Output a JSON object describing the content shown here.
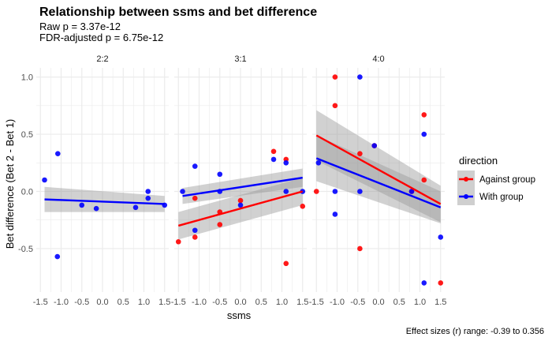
{
  "chart_data": {
    "type": "scatter",
    "title": "Relationship between ssms and bet difference",
    "subtitle_lines": [
      "Raw p = 3.37e-12",
      "FDR-adjusted p = 6.75e-12"
    ],
    "xlabel": "ssms",
    "ylabel": "Bet difference (Bet 2 - Bet 1)",
    "caption": "Effect sizes (r) range: -0.39 to 0.356",
    "xlim": [
      -1.6,
      1.6
    ],
    "ylim": [
      -0.88,
      1.08
    ],
    "x_ticks": [
      -1.5,
      -1.0,
      -0.5,
      0.0,
      0.5,
      1.0,
      1.5
    ],
    "x_tick_labels": [
      "-1.5",
      "-1.0",
      "-0.5",
      "0.0",
      "0.5",
      "1.0",
      "1.5"
    ],
    "y_ticks": [
      -0.5,
      0.0,
      0.5,
      1.0
    ],
    "y_tick_labels": [
      "-0.5",
      "0.0",
      "0.5",
      "1.0"
    ],
    "grid": true,
    "legend": {
      "title": "direction",
      "placement": "right",
      "entries": [
        {
          "key": "against",
          "label": "Against group",
          "color": "#ff0000"
        },
        {
          "key": "with",
          "label": "With group",
          "color": "#0000ff"
        }
      ]
    },
    "colors": {
      "against": "#ff0000",
      "with": "#0000ff",
      "band": "#999999",
      "panel_grid": "#ebebeb"
    },
    "facets": [
      {
        "label": "2:2",
        "points": [
          {
            "x": -1.4,
            "y": 0.1,
            "group": "with"
          },
          {
            "x": -1.08,
            "y": 0.33,
            "group": "with"
          },
          {
            "x": -1.09,
            "y": -0.57,
            "group": "with"
          },
          {
            "x": -0.5,
            "y": -0.12,
            "group": "with"
          },
          {
            "x": -0.15,
            "y": -0.15,
            "group": "with"
          },
          {
            "x": 0.8,
            "y": -0.14,
            "group": "with"
          },
          {
            "x": 1.1,
            "y": -0.06,
            "group": "with"
          },
          {
            "x": 1.1,
            "y": 0.0,
            "group": "with"
          },
          {
            "x": 1.5,
            "y": -0.12,
            "group": "with"
          }
        ],
        "fits": [
          {
            "group": "with",
            "x": [
              -1.4,
              1.5
            ],
            "y": [
              -0.07,
              -0.11
            ],
            "ci": [
              0.11,
              0.07
            ]
          }
        ]
      },
      {
        "label": "3:1",
        "points": [
          {
            "x": -1.5,
            "y": -0.44,
            "group": "against"
          },
          {
            "x": -1.1,
            "y": -0.4,
            "group": "against"
          },
          {
            "x": -1.1,
            "y": -0.06,
            "group": "against"
          },
          {
            "x": -0.5,
            "y": -0.29,
            "group": "against"
          },
          {
            "x": -0.5,
            "y": -0.18,
            "group": "against"
          },
          {
            "x": 0.0,
            "y": -0.08,
            "group": "against"
          },
          {
            "x": 0.8,
            "y": 0.35,
            "group": "against"
          },
          {
            "x": 1.1,
            "y": 0.28,
            "group": "against"
          },
          {
            "x": 1.1,
            "y": -0.63,
            "group": "against"
          },
          {
            "x": 1.5,
            "y": -0.13,
            "group": "against"
          },
          {
            "x": -1.4,
            "y": 0.0,
            "group": "with"
          },
          {
            "x": -1.1,
            "y": 0.22,
            "group": "with"
          },
          {
            "x": -1.1,
            "y": -0.34,
            "group": "with"
          },
          {
            "x": -0.5,
            "y": 0.15,
            "group": "with"
          },
          {
            "x": -0.5,
            "y": 0.0,
            "group": "with"
          },
          {
            "x": 0.0,
            "y": -0.12,
            "group": "with"
          },
          {
            "x": 0.8,
            "y": 0.28,
            "group": "with"
          },
          {
            "x": 1.1,
            "y": 0.25,
            "group": "with"
          },
          {
            "x": 1.1,
            "y": 0.0,
            "group": "with"
          },
          {
            "x": 1.5,
            "y": 0.0,
            "group": "with"
          }
        ],
        "fits": [
          {
            "group": "against",
            "x": [
              -1.5,
              1.5
            ],
            "y": [
              -0.3,
              0.0
            ],
            "ci": [
              0.12,
              0.12
            ]
          },
          {
            "group": "with",
            "x": [
              -1.4,
              1.5
            ],
            "y": [
              -0.04,
              0.12
            ],
            "ci": [
              0.07,
              0.08
            ]
          }
        ]
      },
      {
        "label": "4:0",
        "points": [
          {
            "x": -1.5,
            "y": 0.0,
            "group": "against"
          },
          {
            "x": -1.05,
            "y": 1.0,
            "group": "against"
          },
          {
            "x": -1.05,
            "y": 0.75,
            "group": "against"
          },
          {
            "x": -0.45,
            "y": 0.33,
            "group": "against"
          },
          {
            "x": -0.45,
            "y": -0.5,
            "group": "against"
          },
          {
            "x": -0.1,
            "y": 0.4,
            "group": "against"
          },
          {
            "x": 0.8,
            "y": 0.0,
            "group": "against"
          },
          {
            "x": 1.1,
            "y": 0.67,
            "group": "against"
          },
          {
            "x": 1.1,
            "y": 0.1,
            "group": "against"
          },
          {
            "x": 1.5,
            "y": -0.8,
            "group": "against"
          },
          {
            "x": -1.45,
            "y": 0.25,
            "group": "with"
          },
          {
            "x": -1.05,
            "y": 0.0,
            "group": "with"
          },
          {
            "x": -1.05,
            "y": -0.2,
            "group": "with"
          },
          {
            "x": -0.45,
            "y": 1.0,
            "group": "with"
          },
          {
            "x": -0.45,
            "y": 0.0,
            "group": "with"
          },
          {
            "x": -0.1,
            "y": 0.4,
            "group": "with"
          },
          {
            "x": 0.8,
            "y": 0.0,
            "group": "with"
          },
          {
            "x": 1.1,
            "y": 0.5,
            "group": "with"
          },
          {
            "x": 1.1,
            "y": -0.8,
            "group": "with"
          },
          {
            "x": 1.5,
            "y": -0.4,
            "group": "with"
          }
        ],
        "fits": [
          {
            "group": "against",
            "x": [
              -1.5,
              1.5
            ],
            "y": [
              0.49,
              -0.11
            ],
            "ci": [
              0.22,
              0.16
            ]
          },
          {
            "group": "with",
            "x": [
              -1.5,
              1.5
            ],
            "y": [
              0.29,
              -0.14
            ],
            "ci": [
              0.2,
              0.14
            ]
          }
        ]
      }
    ]
  }
}
